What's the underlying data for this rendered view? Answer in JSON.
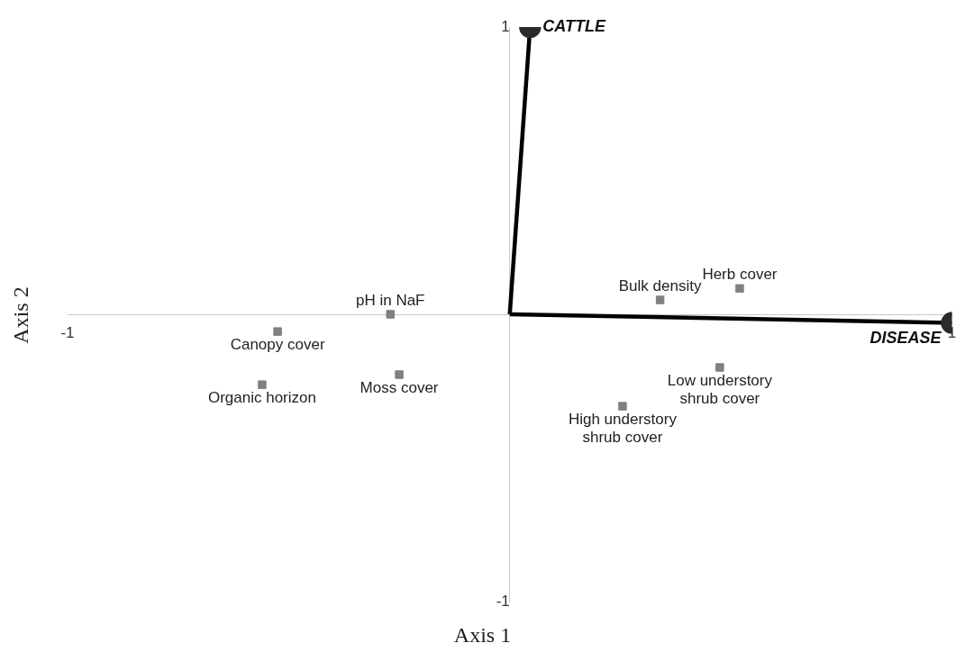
{
  "chart_data": {
    "type": "scatter",
    "xlabel": "Axis 1",
    "ylabel": "Axis 2",
    "xlim": [
      -1,
      1
    ],
    "ylim": [
      -1,
      1
    ],
    "xticks": [
      -1,
      1
    ],
    "yticks": [
      -1,
      1
    ],
    "grid": false,
    "legend": false,
    "marker": "square",
    "series": [
      {
        "color": "#808080",
        "x": [
          -0.27,
          -0.525,
          -0.56,
          -0.25,
          0.34,
          0.52,
          0.475,
          0.255
        ],
        "values": [
          0.0,
          -0.06,
          -0.245,
          -0.21,
          0.05,
          0.09,
          -0.185,
          -0.32
        ]
      },
      {
        "name": "CATTLE",
        "type": "line",
        "marker": "circle",
        "color": "#000000",
        "x": [
          0,
          0.046
        ],
        "values": [
          0,
          1.0
        ]
      },
      {
        "name": "DISEASE",
        "type": "line",
        "marker": "circle",
        "color": "#000000",
        "x": [
          0,
          1.0
        ],
        "values": [
          0,
          -0.03
        ]
      }
    ],
    "annotations": [
      {
        "text": "pH in NaF",
        "x": -0.27,
        "y": 0.0
      },
      {
        "text": "Canopy cover",
        "x": -0.525,
        "y": -0.06
      },
      {
        "text": "Organic horizon",
        "x": -0.56,
        "y": -0.245
      },
      {
        "text": "Moss cover",
        "x": -0.25,
        "y": -0.21
      },
      {
        "text": "Bulk density",
        "x": 0.34,
        "y": 0.05
      },
      {
        "text": "Herb cover",
        "x": 0.52,
        "y": 0.09
      },
      {
        "text": "Low understory shrub cover",
        "x": 0.475,
        "y": -0.185
      },
      {
        "text": "High understory shrub cover",
        "x": 0.255,
        "y": -0.32
      }
    ]
  }
}
